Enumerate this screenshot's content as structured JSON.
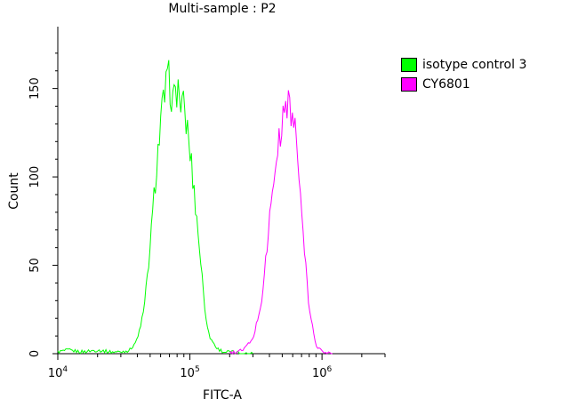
{
  "chart_data": {
    "type": "line",
    "title": "Multi-sample : P2",
    "xlabel": "FITC-A",
    "ylabel": "Count",
    "x_scale": "log",
    "xlim": [
      10000,
      3000000
    ],
    "ylim": [
      0,
      185
    ],
    "x_ticks": [
      {
        "value": 10000,
        "base": "10",
        "exp": "4"
      },
      {
        "value": 100000,
        "base": "10",
        "exp": "5"
      },
      {
        "value": 1000000,
        "base": "10",
        "exp": "6"
      }
    ],
    "y_ticks": [
      0,
      50,
      100,
      150
    ],
    "legend_position": "right",
    "series": [
      {
        "name": "isotype control 3",
        "color": "#00ff00",
        "x": [
          10000,
          12000,
          15000,
          20000,
          25000,
          30000,
          35000,
          40000,
          45000,
          50000,
          55000,
          60000,
          65000,
          70000,
          75000,
          80000,
          85000,
          90000,
          95000,
          100000,
          110000,
          120000,
          130000,
          140000,
          160000,
          180000,
          200000,
          250000,
          300000
        ],
        "y": [
          1,
          2,
          1,
          2,
          1,
          1,
          2,
          8,
          25,
          60,
          100,
          130,
          148,
          155,
          140,
          152,
          142,
          138,
          128,
          115,
          85,
          55,
          25,
          10,
          3,
          1,
          1,
          0,
          0
        ]
      },
      {
        "name": "CY6801",
        "color": "#ff00ff",
        "x": [
          200000,
          250000,
          300000,
          350000,
          400000,
          450000,
          500000,
          550000,
          600000,
          650000,
          700000,
          750000,
          800000,
          900000,
          1000000,
          1200000
        ],
        "y": [
          0,
          2,
          8,
          30,
          75,
          110,
          130,
          144,
          135,
          115,
          80,
          50,
          25,
          5,
          1,
          0
        ]
      }
    ]
  }
}
